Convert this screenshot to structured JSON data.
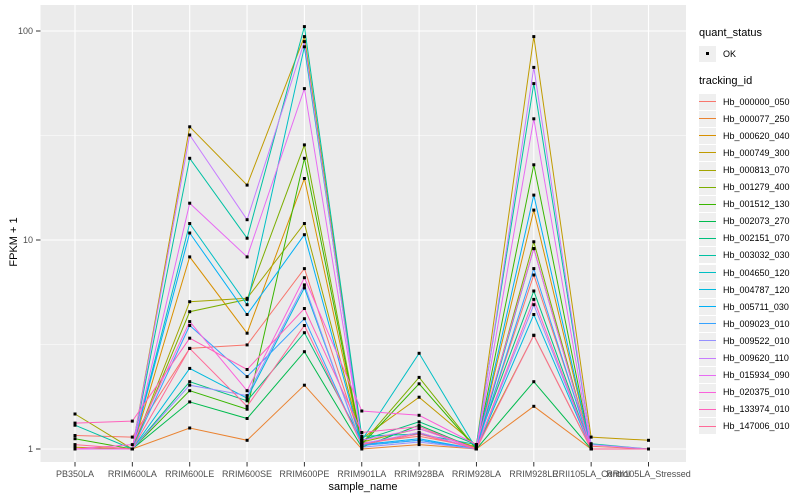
{
  "chart_data": {
    "type": "line",
    "xlabel": "sample_name",
    "ylabel": "FPKM + 1",
    "y_scale": "log10",
    "y_ticks": [
      {
        "label": "1",
        "value": 1
      },
      {
        "label": "10",
        "value": 10
      },
      {
        "label": "100",
        "value": 100
      }
    ],
    "y_minor_values": [
      3.1623,
      31.623
    ],
    "panel_bg": "#ebebeb",
    "grid_color": "#ffffff",
    "point_color": "#000000",
    "axis_text_color": "#4d4d4d",
    "categories": [
      "PB350LA",
      "RRIM600LA",
      "RRIM600LE",
      "RRIM600SE",
      "RRIM600PE",
      "RRIM901LA",
      "RRIM928BA",
      "RRIM928LA",
      "RRIM928LE",
      "RRII105LA_Control",
      "RRII105LA_Stressed"
    ],
    "legend": {
      "quant_status_title": "quant_status",
      "quant_status_items": [
        {
          "label": "OK",
          "shape": "point",
          "color": "#000000"
        }
      ],
      "tracking_title": "tracking_id",
      "position": "right"
    },
    "series": [
      {
        "name": "Hb_000000_050",
        "color": "#F8766D",
        "values": [
          1.16,
          1.14,
          3.03,
          3.15,
          7.3,
          1.07,
          1.15,
          1.02,
          6.8,
          1.03,
          1.0
        ]
      },
      {
        "name": "Hb_000077_250",
        "color": "#EA8331",
        "values": [
          1.0,
          1.0,
          1.26,
          1.1,
          2.02,
          1.0,
          1.05,
          1.0,
          1.6,
          1.0,
          1.0
        ]
      },
      {
        "name": "Hb_000620_040",
        "color": "#D89000",
        "values": [
          1.0,
          1.0,
          8.3,
          3.58,
          19.7,
          1.05,
          1.2,
          1.0,
          13.9,
          1.0,
          1.0
        ]
      },
      {
        "name": "Hb_000749_300",
        "color": "#C09B00",
        "values": [
          1.02,
          1.0,
          34.8,
          18.3,
          94,
          1.12,
          1.77,
          1.04,
          94,
          1.14,
          1.1
        ]
      },
      {
        "name": "Hb_000813_070",
        "color": "#A3A500",
        "values": [
          1.47,
          1.0,
          5.07,
          5.26,
          12.0,
          1.08,
          1.25,
          1.02,
          3.5,
          1.0,
          1.0
        ]
      },
      {
        "name": "Hb_001279_400",
        "color": "#7CAE00",
        "values": [
          1.0,
          1.0,
          4.54,
          5.2,
          28.5,
          1.06,
          2.2,
          1.0,
          9.8,
          1.0,
          1.0
        ]
      },
      {
        "name": "Hb_001512_130",
        "color": "#39B600",
        "values": [
          1.12,
          1.0,
          1.9,
          1.55,
          24.6,
          1.05,
          2.05,
          1.0,
          22.9,
          1.0,
          1.0
        ]
      },
      {
        "name": "Hb_002073_270",
        "color": "#00BB4E",
        "values": [
          1.0,
          1.0,
          1.68,
          1.4,
          2.92,
          1.02,
          1.3,
          1.0,
          2.1,
          1.0,
          1.0
        ]
      },
      {
        "name": "Hb_002151_070",
        "color": "#00BF7D",
        "values": [
          1.0,
          1.0,
          2.1,
          1.7,
          3.6,
          1.1,
          1.35,
          1.05,
          5.7,
          1.0,
          1.0
        ]
      },
      {
        "name": "Hb_003032_030",
        "color": "#00C1A3",
        "values": [
          1.3,
          1.0,
          24.6,
          10.2,
          105,
          1.15,
          1.18,
          1.05,
          56,
          1.06,
          1.0
        ]
      },
      {
        "name": "Hb_004650_120",
        "color": "#00BFC4",
        "values": [
          1.0,
          1.0,
          12.0,
          4.9,
          84,
          1.1,
          2.87,
          1.0,
          9.1,
          1.0,
          1.0
        ]
      },
      {
        "name": "Hb_004787_120",
        "color": "#00BADE",
        "values": [
          1.0,
          1.0,
          2.43,
          1.75,
          5.9,
          1.04,
          1.1,
          1.0,
          4.4,
          1.0,
          1.0
        ]
      },
      {
        "name": "Hb_005711_030",
        "color": "#00B0F6",
        "values": [
          1.0,
          1.0,
          10.8,
          4.4,
          10.6,
          1.05,
          1.12,
          1.0,
          16.4,
          1.0,
          1.0
        ]
      },
      {
        "name": "Hb_009023_010",
        "color": "#35A2FF",
        "values": [
          1.0,
          1.0,
          3.9,
          2.22,
          4.2,
          1.04,
          1.1,
          1.0,
          7.3,
          1.0,
          1.0
        ]
      },
      {
        "name": "Hb_009522_010",
        "color": "#9590FF",
        "values": [
          1.0,
          1.0,
          2.02,
          1.8,
          6.1,
          1.02,
          1.08,
          1.0,
          4.9,
          1.0,
          1.0
        ]
      },
      {
        "name": "Hb_009620_110",
        "color": "#C77CFF",
        "values": [
          1.0,
          1.0,
          31.8,
          12.5,
          89,
          1.06,
          1.2,
          1.0,
          67,
          1.05,
          1.0
        ]
      },
      {
        "name": "Hb_015934_090",
        "color": "#E76BF3",
        "values": [
          1.0,
          1.0,
          15.0,
          8.3,
          53,
          1.1,
          1.25,
          1.0,
          38,
          1.0,
          1.0
        ]
      },
      {
        "name": "Hb_020375_010",
        "color": "#FA62DB",
        "values": [
          1.0,
          1.05,
          4.07,
          1.9,
          6.6,
          1.52,
          1.45,
          1.05,
          9.1,
          1.0,
          1.0
        ]
      },
      {
        "name": "Hb_133974_010",
        "color": "#FF62BC",
        "values": [
          1.33,
          1.36,
          3.39,
          2.4,
          4.7,
          1.2,
          1.28,
          1.0,
          5.2,
          1.0,
          1.0
        ]
      },
      {
        "name": "Hb_147006_010",
        "color": "#FF6A98",
        "values": [
          1.05,
          1.0,
          3.03,
          1.6,
          3.9,
          1.05,
          1.18,
          1.0,
          3.5,
          1.0,
          1.0
        ]
      }
    ]
  }
}
